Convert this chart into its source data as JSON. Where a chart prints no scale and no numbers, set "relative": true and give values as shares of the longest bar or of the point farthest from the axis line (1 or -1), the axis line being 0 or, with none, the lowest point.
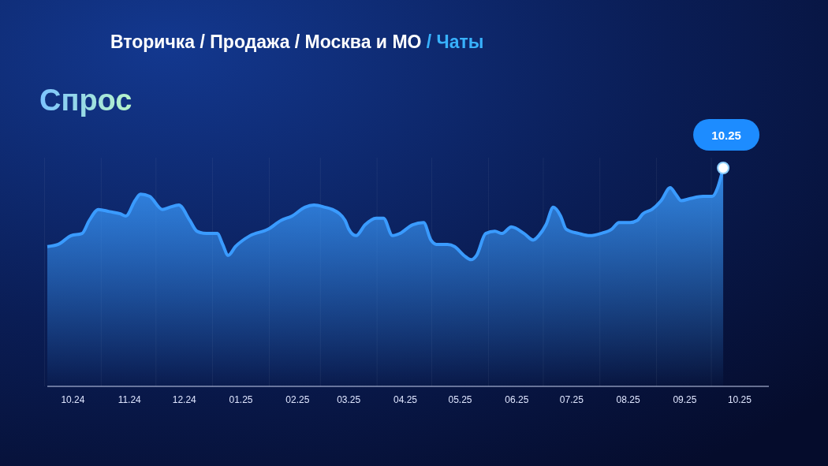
{
  "chart_data": {
    "type": "area",
    "title": "Вторичка / Продажа / Москва и МО / Чаты",
    "subtitle": "Спрос",
    "relative": true,
    "grid": "x",
    "marker": "none",
    "line_style": "solid",
    "xlim": [
      "2024-09-17",
      "2025-10-17"
    ],
    "xticks": [
      {
        "value": "2024-10-01",
        "label": "10.24"
      },
      {
        "value": "2024-11-01",
        "label": "11.24"
      },
      {
        "value": "2024-12-01",
        "label": "12.24"
      },
      {
        "value": "2025-01-01",
        "label": "01.25"
      },
      {
        "value": "2025-02-01",
        "label": "02.25"
      },
      {
        "value": "2025-03-01",
        "label": "03.25"
      },
      {
        "value": "2025-04-01",
        "label": "04.25"
      },
      {
        "value": "2025-05-01",
        "label": "05.25"
      },
      {
        "value": "2025-06-01",
        "label": "06.25"
      },
      {
        "value": "2025-07-01",
        "label": "07.25"
      },
      {
        "value": "2025-08-01",
        "label": "08.25"
      },
      {
        "value": "2025-09-01",
        "label": "09.25"
      },
      {
        "value": "2025-10-01",
        "label": "10.25"
      }
    ],
    "annotations": [
      {
        "text": "10.25",
        "x": "2025-09-22",
        "y": 1
      }
    ],
    "series": [
      {
        "color": "#3a9bff",
        "x": [
          "2024-09-17",
          "2024-09-23",
          "2024-09-30",
          "2024-10-06",
          "2024-10-10",
          "2024-10-15",
          "2024-10-21",
          "2024-10-27",
          "2024-10-30",
          "2024-11-04",
          "2024-11-07",
          "2024-11-12",
          "2024-11-19",
          "2024-11-23",
          "2024-11-28",
          "2024-12-04",
          "2024-12-08",
          "2024-12-13",
          "2024-12-19",
          "2024-12-22",
          "2024-12-25",
          "2024-12-29",
          "2025-01-06",
          "2025-01-16",
          "2025-01-23",
          "2025-01-29",
          "2025-02-05",
          "2025-02-10",
          "2025-02-16",
          "2025-02-20",
          "2025-02-27",
          "2025-03-01",
          "2025-03-05",
          "2025-03-10",
          "2025-03-16",
          "2025-03-20",
          "2025-03-25",
          "2025-03-29",
          "2025-04-05",
          "2025-04-11",
          "2025-04-15",
          "2025-04-18",
          "2025-04-24",
          "2025-04-28",
          "2025-05-03",
          "2025-05-07",
          "2025-05-10",
          "2025-05-15",
          "2025-05-20",
          "2025-05-24",
          "2025-05-29",
          "2025-06-05",
          "2025-06-10",
          "2025-06-13",
          "2025-06-17",
          "2025-06-21",
          "2025-06-25",
          "2025-06-28",
          "2025-07-05",
          "2025-07-11",
          "2025-07-17",
          "2025-07-23",
          "2025-07-27",
          "2025-08-02",
          "2025-08-06",
          "2025-08-09",
          "2025-08-14",
          "2025-08-19",
          "2025-08-24",
          "2025-08-27",
          "2025-08-30",
          "2025-09-04",
          "2025-09-11",
          "2025-09-16",
          "2025-09-19",
          "2025-09-22"
        ],
        "values": [
          0.64,
          0.65,
          0.69,
          0.7,
          0.76,
          0.81,
          0.8,
          0.79,
          0.78,
          0.85,
          0.88,
          0.87,
          0.81,
          0.82,
          0.83,
          0.76,
          0.71,
          0.7,
          0.7,
          0.65,
          0.6,
          0.64,
          0.69,
          0.72,
          0.76,
          0.78,
          0.82,
          0.83,
          0.82,
          0.81,
          0.76,
          0.72,
          0.69,
          0.74,
          0.77,
          0.77,
          0.69,
          0.7,
          0.74,
          0.75,
          0.67,
          0.65,
          0.65,
          0.64,
          0.6,
          0.58,
          0.6,
          0.7,
          0.71,
          0.7,
          0.73,
          0.7,
          0.67,
          0.69,
          0.74,
          0.82,
          0.78,
          0.72,
          0.7,
          0.69,
          0.7,
          0.72,
          0.75,
          0.75,
          0.76,
          0.79,
          0.81,
          0.85,
          0.91,
          0.88,
          0.85,
          0.86,
          0.87,
          0.87,
          0.91,
          1
        ]
      }
    ]
  }
}
